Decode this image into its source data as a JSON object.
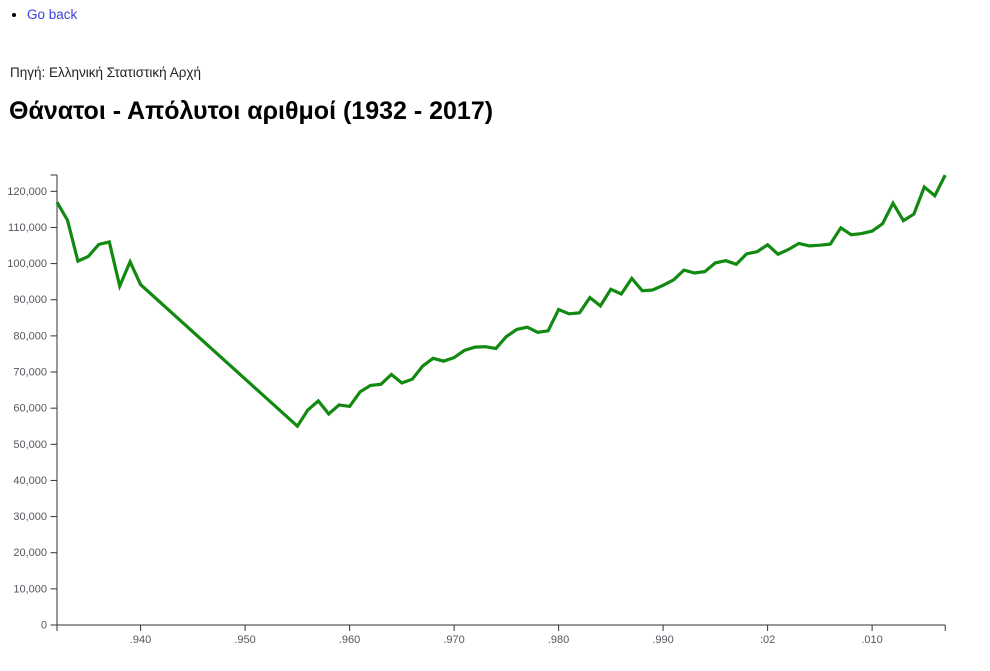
{
  "page": {
    "go_back_label": "Go back",
    "source_label": "Πηγή: Ελληνική Στατιστική Αρχή",
    "title": "Θάνατοι - Απόλυτοι αριθμοί (1932 - 2017)"
  },
  "colors": {
    "line": "#128a12",
    "link": "#3e3ee0",
    "axis": "#333333",
    "tick_label": "#56565e"
  },
  "chart_data": {
    "type": "line",
    "title": "Θάνατοι - Απόλυτοι αριθμοί (1932 - 2017)",
    "xlabel": "",
    "ylabel": "",
    "xlim": [
      1932,
      2017
    ],
    "ylim": [
      0,
      125000
    ],
    "grid": false,
    "legend": false,
    "series": [
      {
        "name": "Θάνατοι",
        "points": [
          [
            1932,
            117000
          ],
          [
            1933,
            112000
          ],
          [
            1934,
            100700
          ],
          [
            1935,
            102000
          ],
          [
            1936,
            105300
          ],
          [
            1937,
            106000
          ],
          [
            1938,
            93800
          ],
          [
            1939,
            100500
          ],
          [
            1940,
            94200
          ],
          [
            1955,
            55000
          ],
          [
            1956,
            59500
          ],
          [
            1957,
            62000
          ],
          [
            1958,
            58400
          ],
          [
            1959,
            60900
          ],
          [
            1960,
            60500
          ],
          [
            1961,
            64500
          ],
          [
            1962,
            66300
          ],
          [
            1963,
            66600
          ],
          [
            1964,
            69300
          ],
          [
            1965,
            67000
          ],
          [
            1966,
            68000
          ],
          [
            1967,
            71700
          ],
          [
            1968,
            73800
          ],
          [
            1969,
            73000
          ],
          [
            1970,
            74000
          ],
          [
            1971,
            76000
          ],
          [
            1972,
            76900
          ],
          [
            1973,
            77000
          ],
          [
            1974,
            76500
          ],
          [
            1975,
            79800
          ],
          [
            1976,
            81800
          ],
          [
            1977,
            82400
          ],
          [
            1978,
            81000
          ],
          [
            1979,
            81400
          ],
          [
            1980,
            87300
          ],
          [
            1981,
            86100
          ],
          [
            1982,
            86400
          ],
          [
            1983,
            90600
          ],
          [
            1984,
            88300
          ],
          [
            1985,
            92900
          ],
          [
            1986,
            91600
          ],
          [
            1987,
            95900
          ],
          [
            1988,
            92500
          ],
          [
            1989,
            92700
          ],
          [
            1990,
            94000
          ],
          [
            1991,
            95500
          ],
          [
            1992,
            98200
          ],
          [
            1993,
            97400
          ],
          [
            1994,
            97800
          ],
          [
            1995,
            100200
          ],
          [
            1996,
            100800
          ],
          [
            1997,
            99800
          ],
          [
            1998,
            102700
          ],
          [
            1999,
            103300
          ],
          [
            2000,
            105200
          ],
          [
            2001,
            102600
          ],
          [
            2002,
            103900
          ],
          [
            2003,
            105600
          ],
          [
            2004,
            104900
          ],
          [
            2005,
            105100
          ],
          [
            2006,
            105400
          ],
          [
            2007,
            109900
          ],
          [
            2008,
            108000
          ],
          [
            2009,
            108300
          ],
          [
            2010,
            109000
          ],
          [
            2011,
            111000
          ],
          [
            2012,
            116700
          ],
          [
            2013,
            111900
          ],
          [
            2014,
            113700
          ],
          [
            2015,
            121200
          ],
          [
            2016,
            118800
          ],
          [
            2017,
            124500
          ]
        ]
      }
    ],
    "x_ticks": [
      {
        "year": 1940,
        "label": ".940"
      },
      {
        "year": 1950,
        "label": ".950"
      },
      {
        "year": 1960,
        "label": ".960"
      },
      {
        "year": 1970,
        "label": ".970"
      },
      {
        "year": 1980,
        "label": ".980"
      },
      {
        "year": 1990,
        "label": ".990"
      },
      {
        "year": 2000,
        "label": ":02"
      },
      {
        "year": 2010,
        "label": ".010"
      }
    ],
    "y_ticks": [
      {
        "value": 0,
        "label": "0"
      },
      {
        "value": 10000,
        "label": "10,000"
      },
      {
        "value": 20000,
        "label": "20,000"
      },
      {
        "value": 30000,
        "label": "30,000"
      },
      {
        "value": 40000,
        "label": "40,000"
      },
      {
        "value": 50000,
        "label": "50,000"
      },
      {
        "value": 60000,
        "label": "60,000"
      },
      {
        "value": 70000,
        "label": "70,000"
      },
      {
        "value": 80000,
        "label": "80,000"
      },
      {
        "value": 90000,
        "label": "90,000"
      },
      {
        "value": 100000,
        "label": "100,000"
      },
      {
        "value": 110000,
        "label": "110,000"
      },
      {
        "value": 120000,
        "label": "120,000"
      }
    ]
  }
}
